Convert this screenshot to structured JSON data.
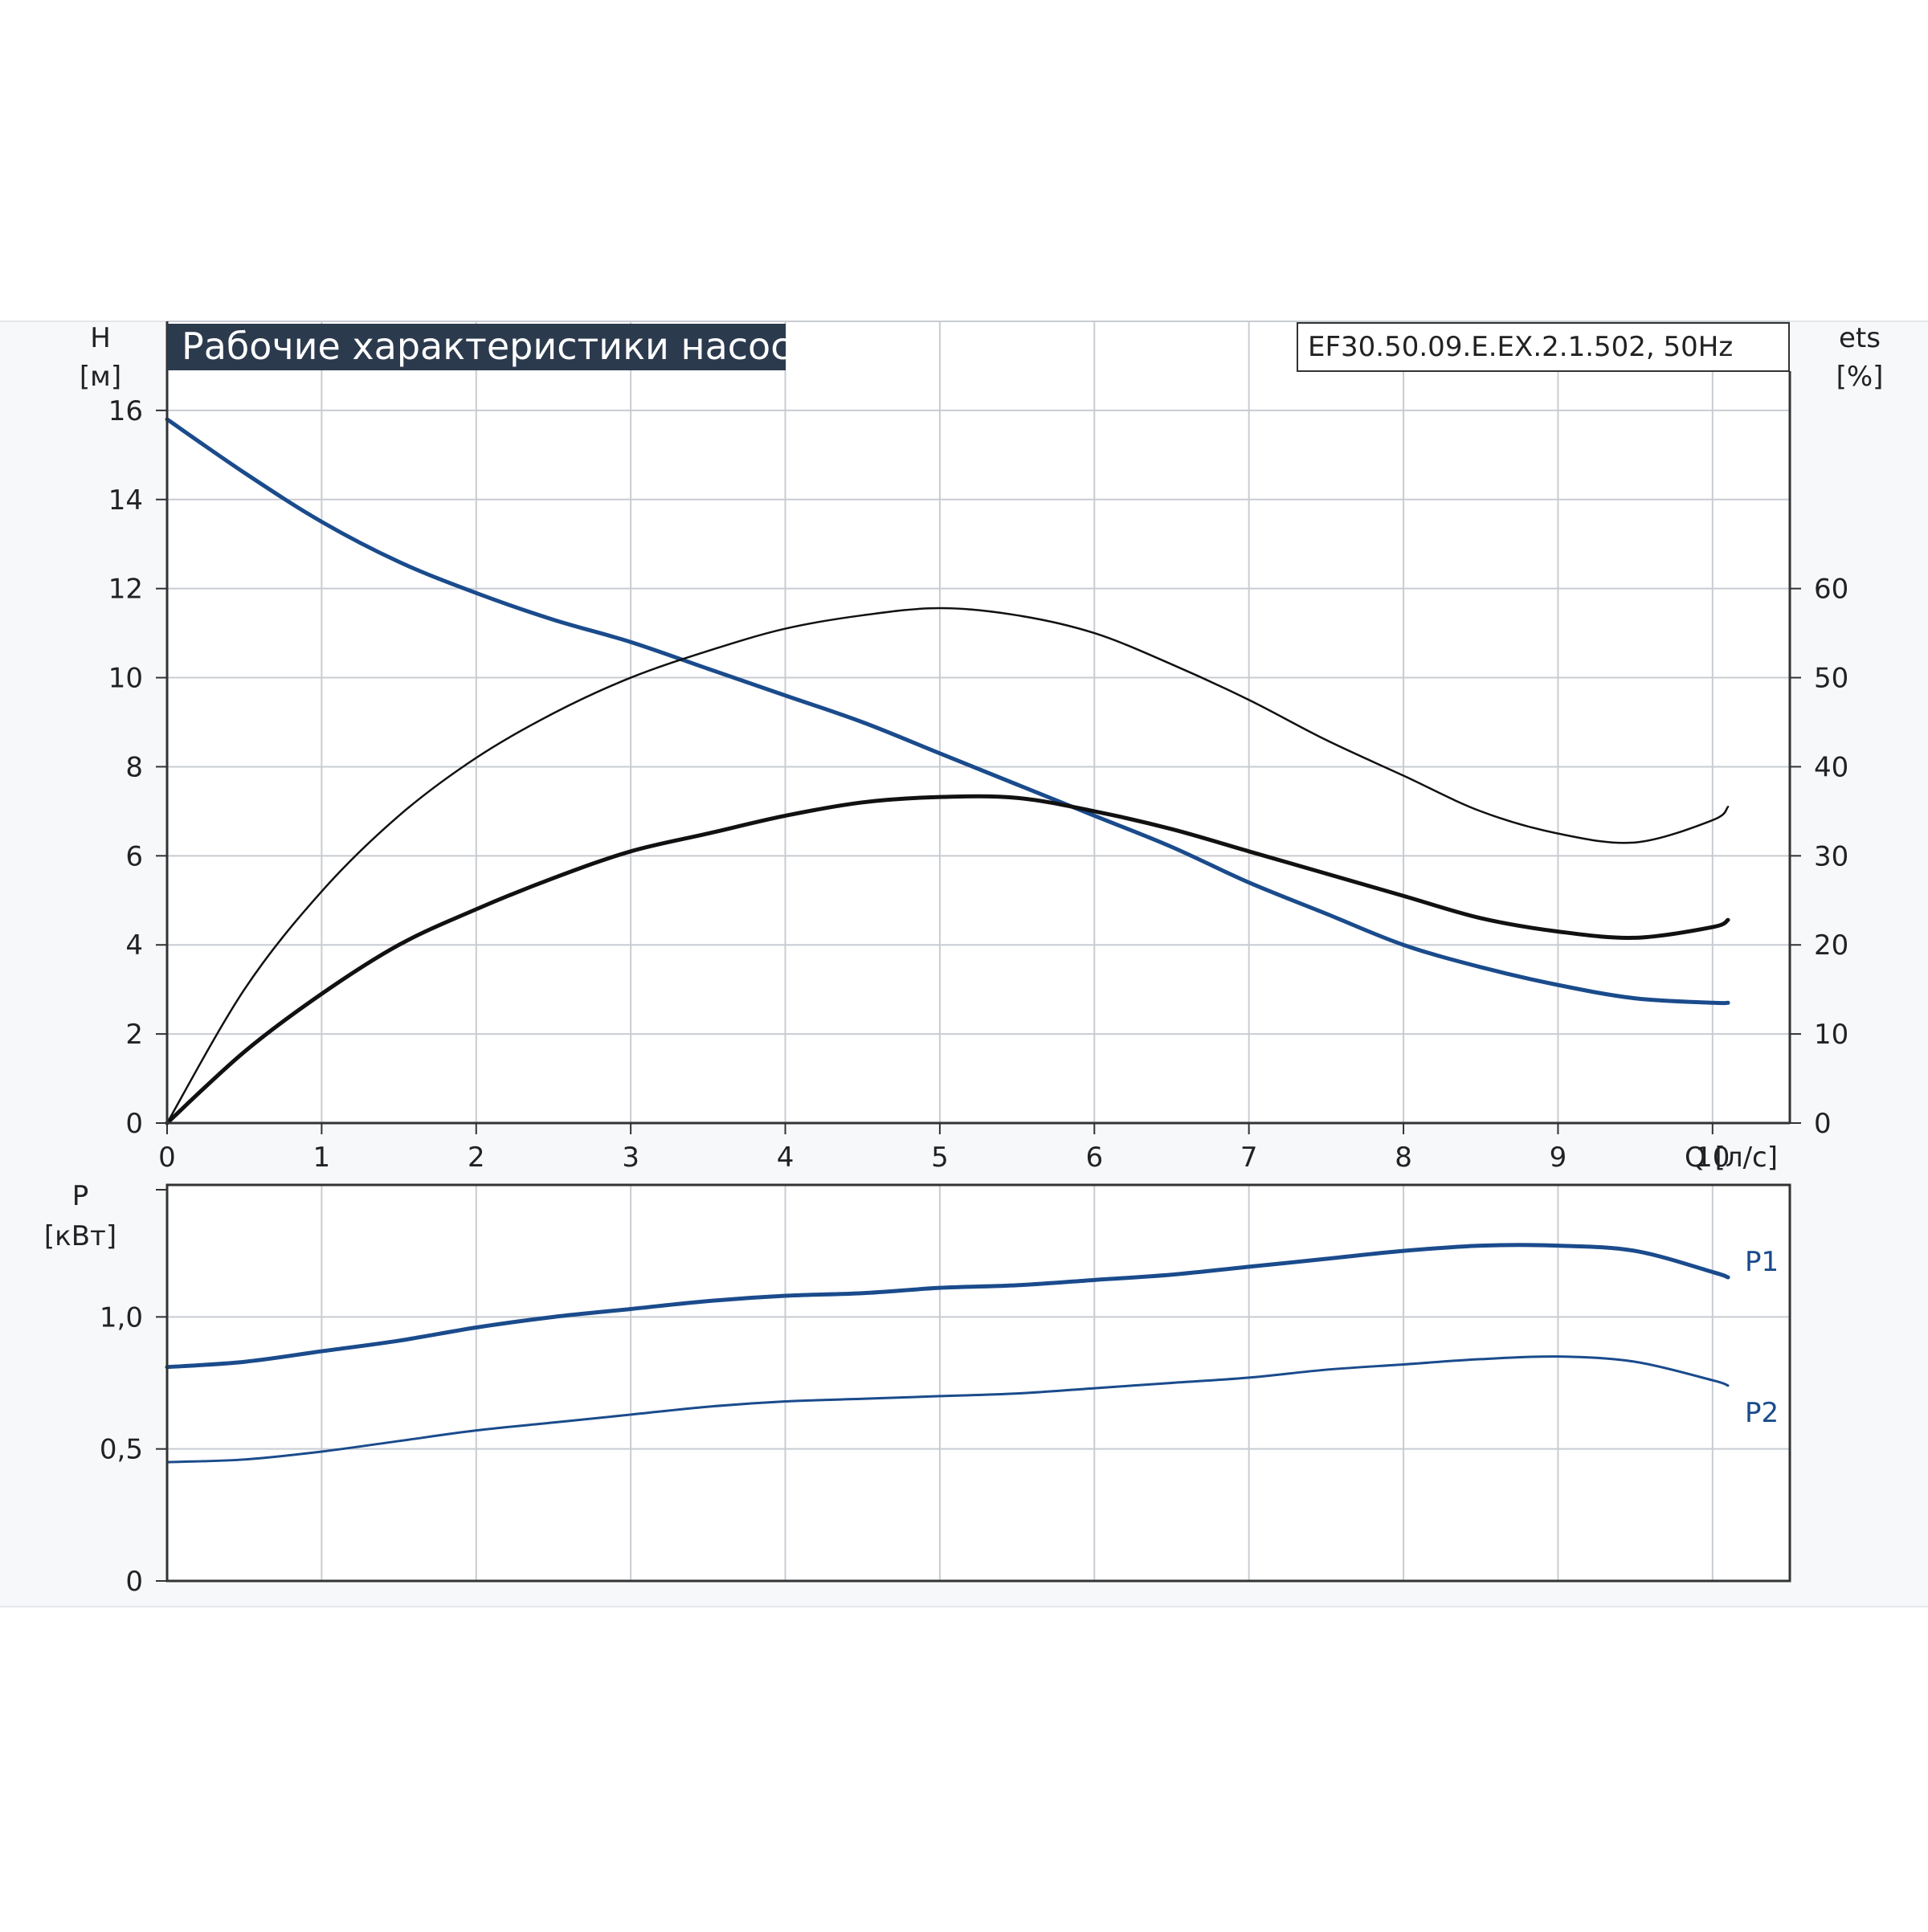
{
  "chart_title": "Рабочие характеристики насоса",
  "model_label": "EF30.50.09.E.EX.2.1.502, 50Hz",
  "chart_data": [
    {
      "type": "line",
      "x_label": "Q [л/с]",
      "xlim": [
        0,
        10.5
      ],
      "x_ticks": [
        "0",
        "1",
        "2",
        "3",
        "4",
        "5",
        "6",
        "7",
        "8",
        "9",
        "10"
      ],
      "y_left": {
        "label_top": "H",
        "label_unit": "[м]",
        "ylim": [
          0,
          18
        ],
        "ticks": [
          "0",
          "2",
          "4",
          "6",
          "8",
          "10",
          "12",
          "14",
          "16"
        ]
      },
      "y_right": {
        "label_top": "ets",
        "label_unit": "[%]",
        "ylim": [
          0,
          90
        ],
        "ticks": [
          "0",
          "10",
          "20",
          "30",
          "40",
          "50",
          "60"
        ]
      },
      "grid": true,
      "series": [
        {
          "axis": "left",
          "color": "#1a4b8c",
          "width": 5,
          "x": [
            0,
            0.5,
            1,
            1.5,
            2,
            2.5,
            3,
            3.5,
            4,
            4.5,
            5,
            5.5,
            6,
            6.5,
            7,
            7.5,
            8,
            8.5,
            9,
            9.5,
            10,
            10.1
          ],
          "y": [
            15.8,
            14.6,
            13.5,
            12.6,
            11.9,
            11.3,
            10.8,
            10.2,
            9.6,
            9.0,
            8.3,
            7.6,
            6.9,
            6.2,
            5.4,
            4.7,
            4.0,
            3.5,
            3.1,
            2.8,
            2.7,
            2.7
          ]
        },
        {
          "axis": "right",
          "color": "#111111",
          "width": 2.5,
          "x": [
            0,
            0.5,
            1,
            1.5,
            2,
            2.5,
            3,
            3.5,
            4,
            4.5,
            5,
            5.5,
            6,
            6.5,
            7,
            7.5,
            8,
            8.5,
            9,
            9.5,
            10,
            10.1
          ],
          "y": [
            0,
            15,
            26,
            34.5,
            41,
            46,
            50,
            53,
            55.5,
            57,
            57.8,
            57,
            55,
            51.5,
            47.5,
            43,
            39,
            35,
            32.5,
            31.5,
            34,
            35.5
          ]
        },
        {
          "axis": "right",
          "color": "#111111",
          "width": 5,
          "x": [
            0,
            0.5,
            1,
            1.5,
            2,
            2.5,
            3,
            3.5,
            4,
            4.5,
            5,
            5.5,
            6,
            6.5,
            7,
            7.5,
            8,
            8.5,
            9,
            9.5,
            10,
            10.1
          ],
          "y": [
            0,
            8,
            14.5,
            20,
            24,
            27.5,
            30.5,
            32.5,
            34.5,
            36,
            36.6,
            36.5,
            35,
            33,
            30.5,
            28,
            25.5,
            23,
            21.5,
            20.8,
            22,
            22.8
          ]
        }
      ]
    },
    {
      "type": "line",
      "x_label": "",
      "xlim": [
        0,
        10.5
      ],
      "y_left": {
        "label_top": "P",
        "label_unit": "[кВт]",
        "ylim": [
          0,
          1.5
        ],
        "ticks": [
          "0",
          "0,5",
          "1,0"
        ]
      },
      "grid": true,
      "series": [
        {
          "name": "P1",
          "color": "#1a4b8c",
          "width": 5,
          "x": [
            0,
            0.5,
            1,
            1.5,
            2,
            2.5,
            3,
            3.5,
            4,
            4.5,
            5,
            5.5,
            6,
            6.5,
            7,
            7.5,
            8,
            8.5,
            9,
            9.5,
            10,
            10.1
          ],
          "y": [
            0.81,
            0.83,
            0.87,
            0.91,
            0.96,
            1.0,
            1.03,
            1.06,
            1.08,
            1.09,
            1.11,
            1.12,
            1.14,
            1.16,
            1.19,
            1.22,
            1.25,
            1.27,
            1.27,
            1.25,
            1.17,
            1.15
          ]
        },
        {
          "name": "P2",
          "color": "#1a4b8c",
          "width": 3,
          "x": [
            0,
            0.5,
            1,
            1.5,
            2,
            2.5,
            3,
            3.5,
            4,
            4.5,
            5,
            5.5,
            6,
            6.5,
            7,
            7.5,
            8,
            8.5,
            9,
            9.5,
            10,
            10.1
          ],
          "y": [
            0.45,
            0.46,
            0.49,
            0.53,
            0.57,
            0.6,
            0.63,
            0.66,
            0.68,
            0.69,
            0.7,
            0.71,
            0.73,
            0.75,
            0.77,
            0.8,
            0.82,
            0.84,
            0.85,
            0.83,
            0.76,
            0.74
          ]
        }
      ]
    }
  ]
}
